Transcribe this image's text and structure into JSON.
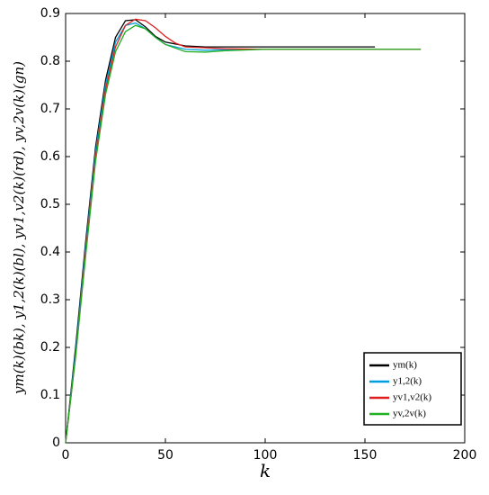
{
  "chart_data": {
    "type": "line",
    "x_label": "k",
    "y_label": "ym(k)(bk), y1,2(k)(bl), yv1,v2(k)(rd), yv,2v(k)(gn)",
    "xlim": [
      0,
      200
    ],
    "xticks": [
      0,
      50,
      100,
      150,
      200
    ],
    "ylim": [
      0,
      0.9
    ],
    "yticks": [
      0,
      0.1,
      0.2,
      0.3,
      0.4,
      0.5,
      0.6,
      0.7,
      0.8,
      0.9
    ],
    "legend_position": "lower right",
    "series": [
      {
        "name": "ym(k)",
        "color": "#000000",
        "x": [
          0,
          5,
          10,
          15,
          20,
          25,
          30,
          35,
          40,
          45,
          50,
          60,
          70,
          80,
          100,
          120,
          155
        ],
        "values": [
          0,
          0.2,
          0.42,
          0.62,
          0.76,
          0.85,
          0.885,
          0.887,
          0.872,
          0.852,
          0.84,
          0.832,
          0.83,
          0.83,
          0.83,
          0.83,
          0.83
        ]
      },
      {
        "name": "y1,2(k)",
        "color": "#00a0e0",
        "x": [
          0,
          5,
          10,
          15,
          20,
          25,
          30,
          35,
          40,
          45,
          50,
          60,
          70,
          80,
          100
        ],
        "values": [
          0,
          0.19,
          0.41,
          0.61,
          0.75,
          0.84,
          0.875,
          0.88,
          0.868,
          0.85,
          0.835,
          0.825,
          0.823,
          0.824,
          0.825
        ]
      },
      {
        "name": "yv1,v2(k)",
        "color": "#e02020",
        "x": [
          0,
          5,
          10,
          15,
          20,
          25,
          30,
          35,
          40,
          45,
          50,
          55,
          60,
          70,
          80,
          100,
          140,
          178
        ],
        "values": [
          0,
          0.18,
          0.4,
          0.6,
          0.74,
          0.83,
          0.875,
          0.888,
          0.885,
          0.87,
          0.852,
          0.838,
          0.83,
          0.828,
          0.826,
          0.825,
          0.825,
          0.825
        ]
      },
      {
        "name": "yv,2v(k)",
        "color": "#20b020",
        "x": [
          0,
          5,
          10,
          15,
          20,
          25,
          30,
          35,
          40,
          45,
          50,
          60,
          70,
          80,
          100,
          140,
          178
        ],
        "values": [
          0,
          0.18,
          0.39,
          0.59,
          0.73,
          0.82,
          0.862,
          0.875,
          0.868,
          0.85,
          0.835,
          0.82,
          0.819,
          0.822,
          0.825,
          0.825,
          0.825
        ]
      }
    ]
  }
}
